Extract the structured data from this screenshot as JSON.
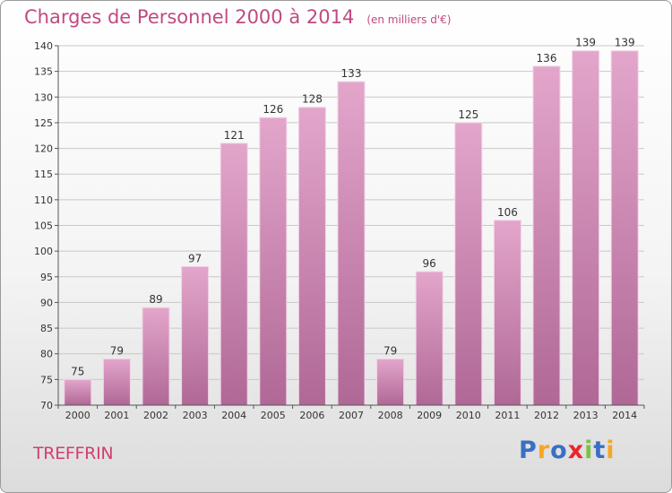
{
  "title": "Charges de Personnel 2000 à 2014",
  "subtitle": "(en milliers d'€)",
  "location": "TREFFRIN",
  "logo": {
    "letters": [
      "P",
      "r",
      "o",
      "x",
      "i",
      "t",
      "i"
    ],
    "colors": [
      "#3a6fc4",
      "#f5a623",
      "#3a6fc4",
      "#e8262e",
      "#7cc243",
      "#3a6fc4",
      "#f5a623"
    ]
  },
  "colors": {
    "bar_top": "#e3a6cb",
    "bar_bottom": "#b06896",
    "title": "#c04a82",
    "grid": "#c8c8c8"
  },
  "chart_data": {
    "type": "bar",
    "categories": [
      "2000",
      "2001",
      "2002",
      "2003",
      "2004",
      "2005",
      "2006",
      "2007",
      "2008",
      "2009",
      "2010",
      "2011",
      "2012",
      "2013",
      "2014"
    ],
    "values": [
      75,
      79,
      89,
      97,
      121,
      126,
      128,
      133,
      79,
      96,
      125,
      106,
      136,
      139,
      139
    ],
    "title": "Charges de Personnel 2000 à 2014",
    "subtitle": "(en milliers d'€)",
    "xlabel": "",
    "ylabel": "",
    "ylim": [
      70,
      140
    ],
    "yticks": [
      70,
      75,
      80,
      85,
      90,
      95,
      100,
      105,
      110,
      115,
      120,
      125,
      130,
      135,
      140
    ],
    "grid": true,
    "data_labels": true
  }
}
